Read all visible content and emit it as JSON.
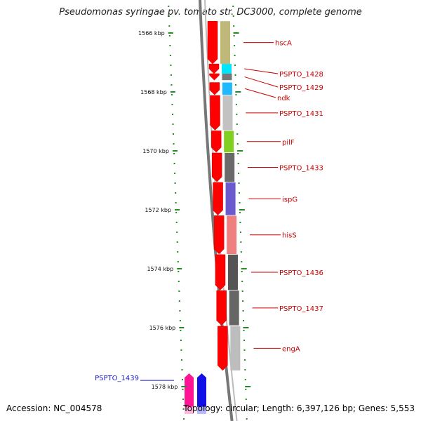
{
  "title": "Pseudomonas syringae pv. tomato str. DC3000, complete genome",
  "footer": {
    "accession": "Accession: NC_004578",
    "summary": "Topology: circular; Length: 6,397,126 bp; Genes: 5,553"
  },
  "scale": {
    "unit": "kbp",
    "ticks": [
      {
        "kbp": 1566,
        "label": "1566 kbp"
      },
      {
        "kbp": 1568,
        "label": "1568 kbp"
      },
      {
        "kbp": 1570,
        "label": "1570 kbp"
      },
      {
        "kbp": 1572,
        "label": "1572 kbp"
      },
      {
        "kbp": 1574,
        "label": "1574 kbp"
      },
      {
        "kbp": 1576,
        "label": "1576 kbp"
      },
      {
        "kbp": 1578,
        "label": "1578 kbp"
      }
    ]
  },
  "genes": [
    {
      "name": "hscA",
      "start": 1565.6,
      "end": 1567.05,
      "strand": "+",
      "color": "#c0b878"
    },
    {
      "name": "PSPTO_1428",
      "start": 1567.05,
      "end": 1567.38,
      "strand": "+",
      "color": "#00e5ff"
    },
    {
      "name": "PSPTO_1429",
      "start": 1567.38,
      "end": 1567.6,
      "strand": "+",
      "color": "#777777"
    },
    {
      "name": "ndk",
      "start": 1567.68,
      "end": 1568.1,
      "strand": "+",
      "color": "#20b8ff"
    },
    {
      "name": "PSPTO_1431",
      "start": 1568.12,
      "end": 1569.3,
      "strand": "+",
      "color": "#c2c2c2"
    },
    {
      "name": "pilF",
      "start": 1569.32,
      "end": 1570.05,
      "strand": "+",
      "color": "#7fd020"
    },
    {
      "name": "PSPTO_1433",
      "start": 1570.07,
      "end": 1571.05,
      "strand": "+",
      "color": "#6a6a6a"
    },
    {
      "name": "ispG",
      "start": 1571.07,
      "end": 1572.18,
      "strand": "+",
      "color": "#6a5acd"
    },
    {
      "name": "hisS",
      "start": 1572.2,
      "end": 1573.5,
      "strand": "+",
      "color": "#f08080"
    },
    {
      "name": "PSPTO_1436",
      "start": 1573.52,
      "end": 1574.72,
      "strand": "+",
      "color": "#555555"
    },
    {
      "name": "PSPTO_1437",
      "start": 1574.74,
      "end": 1575.92,
      "strand": "+",
      "color": "#666666"
    },
    {
      "name": "engA",
      "start": 1575.95,
      "end": 1577.45,
      "strand": "+",
      "color": "#bdbdbd"
    },
    {
      "name": "PSPTO_1439",
      "start": 1577.55,
      "end": 1578.92,
      "strand": "-",
      "color": "#ff1493"
    },
    {
      "name": "",
      "start": 1577.55,
      "end": 1578.92,
      "strand": "-",
      "color": "#1010e6"
    }
  ]
}
